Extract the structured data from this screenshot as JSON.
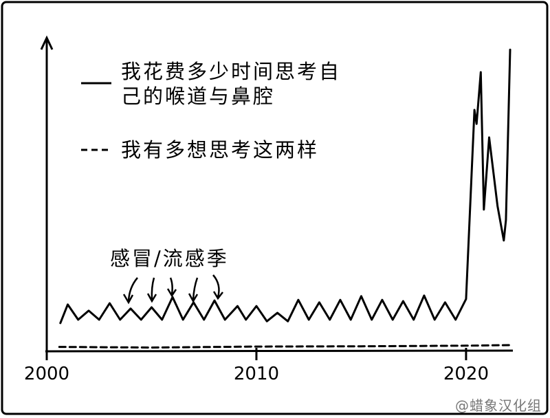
{
  "chart_data": {
    "type": "line",
    "series": [
      {
        "name": "我花费多少时间思考自己的喉道与鼻腔",
        "color": "#000000",
        "dash": false,
        "x": [
          2000.65,
          2001.0,
          2001.5,
          2002.0,
          2002.5,
          2003.0,
          2003.5,
          2004.0,
          2004.5,
          2005.0,
          2005.5,
          2006.0,
          2006.5,
          2007.0,
          2007.5,
          2008.0,
          2008.5,
          2009.1,
          2009.5,
          2010.0,
          2010.5,
          2011.0,
          2011.5,
          2012.0,
          2012.5,
          2013.0,
          2013.5,
          2014.0,
          2014.5,
          2015.0,
          2015.5,
          2016.0,
          2016.5,
          2017.0,
          2017.5,
          2018.0,
          2018.5,
          2019.0,
          2019.5,
          2020.0,
          2020.4,
          2020.5,
          2020.7,
          2020.85,
          2021.1,
          2021.3,
          2021.5,
          2021.8,
          2021.9,
          2022.1
        ],
        "values": [
          8.9,
          14.9,
          10,
          12.9,
          10,
          15.3,
          10,
          13.6,
          10,
          14,
          10,
          17.3,
          10,
          15.6,
          10,
          16.2,
          10,
          14.4,
          10,
          14.4,
          9.5,
          12.2,
          9.5,
          16.4,
          10,
          15.6,
          10,
          16.4,
          10,
          17.6,
          10,
          16.4,
          10,
          16,
          10,
          17.8,
          10,
          15.6,
          10,
          16.7,
          77.8,
          73.3,
          90,
          45.6,
          68.9,
          57.8,
          46.7,
          35.6,
          42.2,
          97.3
        ]
      },
      {
        "name": "我有多想思考这两样",
        "color": "#000000",
        "dash": true,
        "x": [
          2000.6,
          2005,
          2010,
          2015,
          2020,
          2022.2
        ],
        "values": [
          1.2,
          1.0,
          1.3,
          1.4,
          1.6,
          1.8
        ]
      }
    ],
    "annotation": "感冒/流感季",
    "xlim": [
      2000,
      2022.2
    ],
    "xticks": [
      2000,
      2010,
      2020
    ],
    "ylim": [
      0,
      100
    ]
  },
  "watermark": "@蜡象汉化组"
}
